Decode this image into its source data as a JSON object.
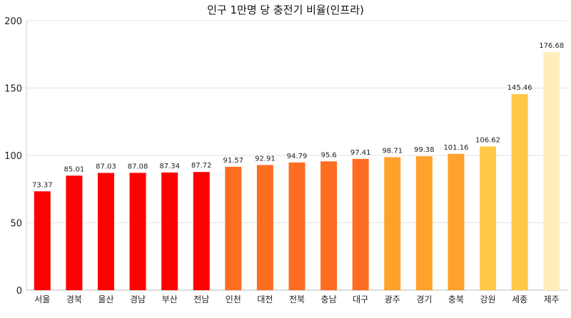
{
  "chart_data": {
    "type": "bar",
    "title": "인구 1만명 당 충전기 비율(인프라)",
    "xlabel": "",
    "ylabel": "",
    "ylim": [
      0,
      200
    ],
    "yticks": [
      0,
      50,
      100,
      150,
      200
    ],
    "grid": true,
    "categories": [
      "서울",
      "경북",
      "울산",
      "경남",
      "부산",
      "전남",
      "인천",
      "대전",
      "전북",
      "충남",
      "대구",
      "광주",
      "경기",
      "충북",
      "강원",
      "세종",
      "제주"
    ],
    "values": [
      73.37,
      85.01,
      87.03,
      87.08,
      87.34,
      87.72,
      91.57,
      92.91,
      94.79,
      95.6,
      97.41,
      98.71,
      99.38,
      101.16,
      106.62,
      145.46,
      176.68
    ],
    "value_labels": [
      "73.37",
      "85.01",
      "87.03",
      "87.08",
      "87.34",
      "87.72",
      "91.57",
      "92.91",
      "94.79",
      "95.6",
      "97.41",
      "98.71",
      "99.38",
      "101.16",
      "106.62",
      "145.46",
      "176.68"
    ],
    "colors": [
      "#ff0000",
      "#ff0000",
      "#ff0000",
      "#ff0000",
      "#ff0000",
      "#ff0000",
      "#ff6d22",
      "#ff6d22",
      "#ff6d22",
      "#ff6d22",
      "#ff6d22",
      "#ffa22b",
      "#ffa22b",
      "#ffa22b",
      "#ffc848",
      "#ffc848",
      "#ffeebc"
    ]
  }
}
